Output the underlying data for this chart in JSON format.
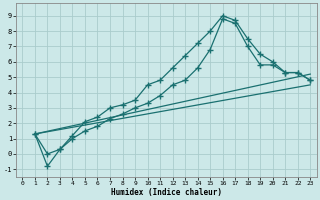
{
  "xlabel": "Humidex (Indice chaleur)",
  "bg_color": "#cce8e8",
  "grid_color": "#aacccc",
  "line_color": "#1a7070",
  "markersize": 2.5,
  "linewidth": 0.9,
  "xlim": [
    -0.5,
    23.5
  ],
  "ylim": [
    -1.5,
    9.8
  ],
  "xticks": [
    0,
    1,
    2,
    3,
    4,
    5,
    6,
    7,
    8,
    9,
    10,
    11,
    12,
    13,
    14,
    15,
    16,
    17,
    18,
    19,
    20,
    21,
    22,
    23
  ],
  "yticks": [
    -1,
    0,
    1,
    2,
    3,
    4,
    5,
    6,
    7,
    8,
    9
  ],
  "line1_x": [
    1,
    2,
    3,
    4,
    5,
    6,
    7,
    8,
    9,
    10,
    11,
    12,
    13,
    14,
    15,
    16,
    17,
    18,
    19,
    20,
    21,
    22,
    23
  ],
  "line1_y": [
    1.3,
    0.0,
    0.3,
    1.2,
    2.1,
    2.4,
    3.0,
    3.2,
    3.5,
    4.5,
    4.8,
    5.6,
    6.4,
    7.2,
    8.0,
    9.0,
    8.7,
    7.5,
    6.5,
    6.0,
    5.3,
    5.3,
    4.8
  ],
  "line2_x": [
    1,
    2,
    3,
    4,
    5,
    6,
    7,
    8,
    9,
    10,
    11,
    12,
    13,
    14,
    15,
    16,
    17,
    18,
    19,
    20,
    21,
    22,
    23
  ],
  "line2_y": [
    1.3,
    -0.8,
    0.3,
    1.0,
    1.5,
    1.8,
    2.3,
    2.6,
    3.0,
    3.3,
    3.8,
    4.5,
    4.8,
    5.6,
    6.8,
    8.8,
    8.5,
    7.0,
    5.8,
    5.8,
    5.3,
    5.3,
    4.8
  ],
  "line3_x": [
    1,
    23
  ],
  "line3_y": [
    1.3,
    5.2
  ],
  "line4_x": [
    1,
    23
  ],
  "line4_y": [
    1.3,
    4.5
  ]
}
